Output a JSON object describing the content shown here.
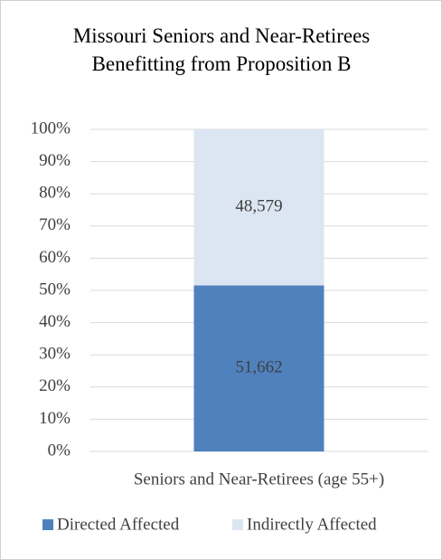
{
  "chart_data": {
    "type": "bar",
    "stacking": "percent",
    "title": "Missouri Seniors and Near-Retirees Benefitting from Proposition B",
    "categories": [
      "Seniors and Near-Retirees (age 55+)"
    ],
    "series": [
      {
        "name": "Directed Affected",
        "color": "#4f81bd",
        "values": [
          51662
        ],
        "value_labels": [
          "51,662"
        ]
      },
      {
        "name": "Indirectly Affected",
        "color": "#dce6f2",
        "values": [
          48579
        ],
        "value_labels": [
          "48,579"
        ]
      }
    ],
    "ylim": [
      0,
      100
    ],
    "yticks": [
      {
        "value": 0,
        "label": "0%"
      },
      {
        "value": 10,
        "label": "10%"
      },
      {
        "value": 20,
        "label": "20%"
      },
      {
        "value": 30,
        "label": "30%"
      },
      {
        "value": 40,
        "label": "40%"
      },
      {
        "value": 50,
        "label": "50%"
      },
      {
        "value": 60,
        "label": "60%"
      },
      {
        "value": 70,
        "label": "70%"
      },
      {
        "value": 80,
        "label": "80%"
      },
      {
        "value": 90,
        "label": "90%"
      },
      {
        "value": 100,
        "label": "100%"
      }
    ],
    "grid": true,
    "legend": "bottom"
  }
}
